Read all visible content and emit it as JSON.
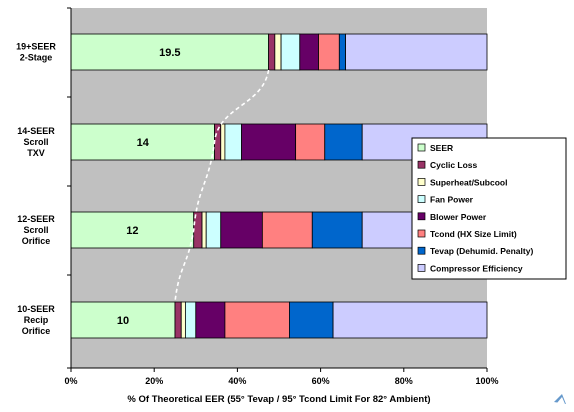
{
  "chart_data": {
    "type": "bar",
    "stacked": true,
    "orientation": "horizontal",
    "xlabel": "% Of Theoretical EER (55° Tevap / 95° Tcond Limit For 82° Ambient)",
    "xlim": [
      0,
      100
    ],
    "x_ticks": [
      "0%",
      "20%",
      "40%",
      "60%",
      "80%",
      "100%"
    ],
    "categories": [
      [
        "19+SEER",
        "2-Stage"
      ],
      [
        "14-SEER",
        "Scroll",
        "TXV"
      ],
      [
        "12-SEER",
        "Scroll",
        "Orifice"
      ],
      [
        "10-SEER",
        "Recip",
        "Orifice"
      ]
    ],
    "data_labels": [
      "19.5",
      "14",
      "12",
      "10"
    ],
    "series": [
      {
        "name": "SEER",
        "color": "#ccffcc",
        "values": [
          47.5,
          34.5,
          29.5,
          25
        ]
      },
      {
        "name": "Cyclic Loss",
        "color": "#993366",
        "values": [
          1.5,
          1.5,
          2,
          1.5
        ]
      },
      {
        "name": "Superheat/Subcool",
        "color": "#ffffcc",
        "values": [
          1.5,
          1,
          1,
          1
        ]
      },
      {
        "name": "Fan Power",
        "color": "#ccffff",
        "values": [
          4.5,
          4,
          3.5,
          2.5
        ]
      },
      {
        "name": "Blower Power",
        "color": "#660066",
        "values": [
          4.5,
          13,
          10,
          7
        ]
      },
      {
        "name": "Tcond (HX Size Limit)",
        "color": "#ff8080",
        "values": [
          5,
          7,
          12,
          15.5
        ]
      },
      {
        "name": "Tevap (Dehumid. Penalty)",
        "color": "#0066cc",
        "values": [
          1.5,
          9,
          12,
          10.5
        ]
      },
      {
        "name": "Compressor Efficiency",
        "color": "#ccccff",
        "values": [
          34,
          30,
          30,
          37
        ]
      }
    ],
    "legend_position": "right",
    "plot_background": "#c0c0c0",
    "trend_line": "dashed white curve connecting the ends of the SEER segments"
  }
}
